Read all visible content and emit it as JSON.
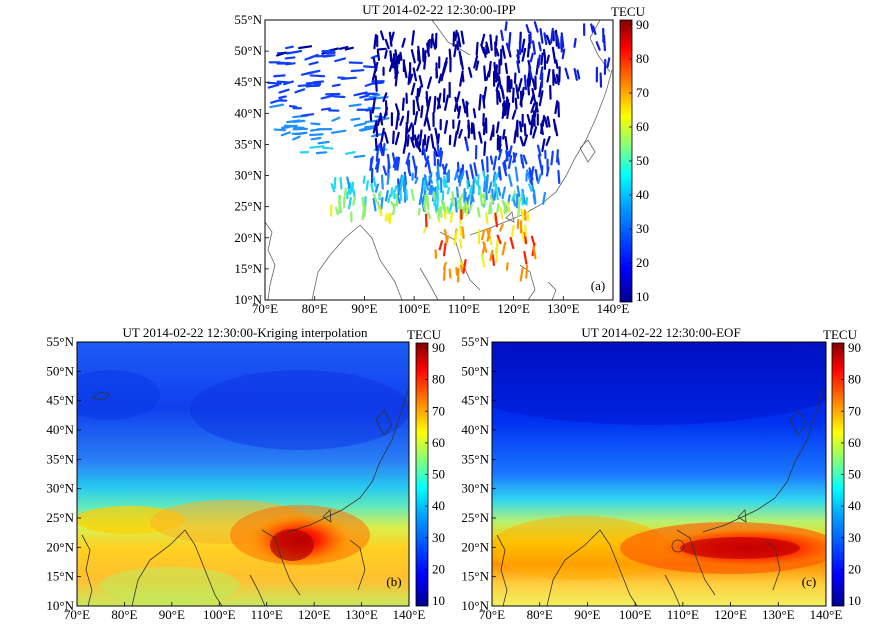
{
  "colormap": {
    "unit": "TECU",
    "ticks": [
      "90",
      "80",
      "70",
      "60",
      "50",
      "40",
      "30",
      "20",
      "10"
    ],
    "stops": [
      "#00008f",
      "#0000ff",
      "#0080ff",
      "#00ffff",
      "#80ff80",
      "#ffff00",
      "#ff8000",
      "#ff0000",
      "#800000"
    ]
  },
  "panels": [
    {
      "title": "UT 2014-02-22 12:30:00-IPP",
      "label": "(a)",
      "lat_ticks": [
        "55°N",
        "50°N",
        "45°N",
        "40°N",
        "35°N",
        "30°N",
        "25°N",
        "20°N",
        "15°N",
        "10°N"
      ],
      "lon_ticks": [
        "70°E",
        "80°E",
        "90°E",
        "100°E",
        "110°E",
        "120°E",
        "130°E",
        "140°E"
      ]
    },
    {
      "title": "UT 2014-02-22 12:30:00-Kriging interpolation",
      "label": "(b)",
      "lat_ticks": [
        "55°N",
        "50°N",
        "45°N",
        "40°N",
        "35°N",
        "30°N",
        "25°N",
        "20°N",
        "15°N",
        "10°N"
      ],
      "lon_ticks": [
        "70°E",
        "80°E",
        "90°E",
        "100°E",
        "110°E",
        "120°E",
        "130°E",
        "140°E"
      ]
    },
    {
      "title": "UT 2014-02-22 12:30:00-EOF",
      "label": "(c)",
      "lat_ticks": [
        "55°N",
        "50°N",
        "45°N",
        "40°N",
        "35°N",
        "30°N",
        "25°N",
        "20°N",
        "15°N",
        "10°N"
      ],
      "lon_ticks": [
        "70°E",
        "80°E",
        "90°E",
        "100°E",
        "110°E",
        "120°E",
        "130°E",
        "140°E"
      ]
    }
  ]
}
